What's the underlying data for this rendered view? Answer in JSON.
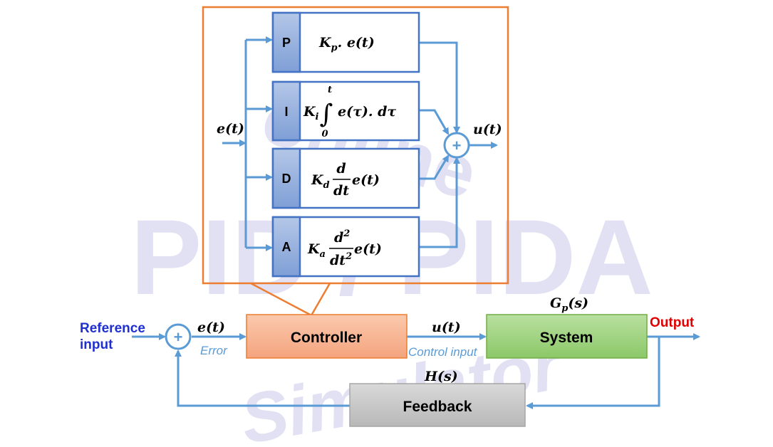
{
  "watermark": {
    "line1": "online",
    "line2": "PID / PIDA",
    "line3": "Simulator"
  },
  "controller_detail": {
    "input_signal": "e(t)",
    "output_signal": "u(t)",
    "sum_symbol": "+",
    "terms": [
      {
        "tag": "P",
        "coef": "K",
        "sub": "p",
        "expr": ". e(t)"
      },
      {
        "tag": "I",
        "coef": "K",
        "sub": "i",
        "upper": "t",
        "lower": "0",
        "integral": "∫",
        "expr": "e(τ). dτ"
      },
      {
        "tag": "D",
        "coef": "K",
        "sub": "d",
        "num": "d",
        "den": "dt",
        "expr": "e(t)"
      },
      {
        "tag": "A",
        "coef": "K",
        "sub": "a",
        "num": "d",
        "num_sup": "2",
        "den": "dt",
        "den_sup": "2",
        "expr": "e(t)"
      }
    ]
  },
  "loop": {
    "reference_line1": "Reference",
    "reference_line2": "input",
    "sum_symbol": "+",
    "error_signal": "e(t)",
    "error_label": "Error",
    "controller_label": "Controller",
    "control_signal": "u(t)",
    "control_label": "Control input",
    "plant_tf": "G",
    "plant_tf_sub": "p",
    "plant_tf_arg": "(s)",
    "system_label": "System",
    "output_label": "Output",
    "feedback_tf": "H(s)",
    "feedback_label": "Feedback"
  },
  "colors": {
    "wire": "#5b9bd5",
    "expand_outline": "#ed7d31",
    "controller_fill": "#f8b595",
    "system_fill": "#9fd37f",
    "feedback_fill": "#c8c8c8",
    "pid_box_border": "#4472c4",
    "pid_tag_fill": "#8ea9db",
    "reference_text": "#1f2fd0",
    "output_text": "#e00000"
  }
}
